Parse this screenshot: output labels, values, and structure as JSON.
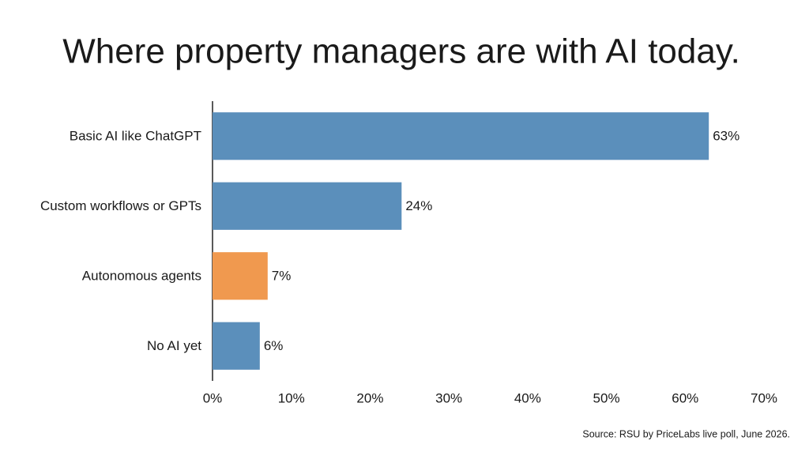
{
  "chart_data": {
    "type": "bar",
    "orientation": "horizontal",
    "title": "Where property managers are with AI today.",
    "categories": [
      "Basic AI like ChatGPT",
      "Custom workflows or GPTs",
      "Autonomous agents",
      "No AI yet"
    ],
    "values": [
      63,
      24,
      7,
      6
    ],
    "value_labels": [
      "63%",
      "24%",
      "7%",
      "6%"
    ],
    "colors": [
      "#5b8fbb",
      "#5b8fbb",
      "#f0994f",
      "#5b8fbb"
    ],
    "xlim": [
      0,
      70
    ],
    "xticks": [
      {
        "value": 0,
        "label": "0%"
      },
      {
        "value": 10,
        "label": "10%"
      },
      {
        "value": 20,
        "label": "20%"
      },
      {
        "value": 30,
        "label": "30%"
      },
      {
        "value": 40,
        "label": "40%"
      },
      {
        "value": 50,
        "label": "50%"
      },
      {
        "value": 60,
        "label": "60%"
      },
      {
        "value": 70,
        "label": "70%"
      }
    ],
    "grid": false,
    "source": "Source: RSU by PriceLabs live poll, June 2026."
  }
}
